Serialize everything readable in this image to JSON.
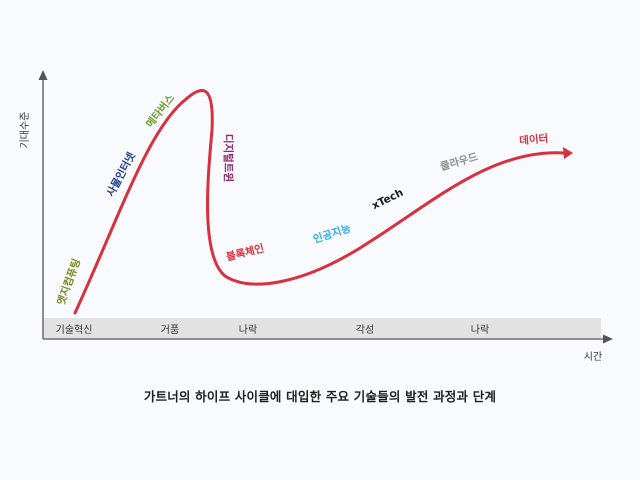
{
  "axes": {
    "y_label": "기대수준",
    "x_label": "시간"
  },
  "stages": [
    "기술혁신",
    "거품",
    "나락",
    "각성",
    "나락"
  ],
  "technologies": [
    {
      "label": "엣지컴퓨팅",
      "color": "#7a8a23"
    },
    {
      "label": "사물인터넷",
      "color": "#1d3c86"
    },
    {
      "label": "메타버스",
      "color": "#6f9a2e"
    },
    {
      "label": "디지털트윈",
      "color": "#8b2a6f"
    },
    {
      "label": "블록체인",
      "color": "#d8303f"
    },
    {
      "label": "인공지능",
      "color": "#2eaee0"
    },
    {
      "label": "xTech",
      "color": "#1a1a1a"
    },
    {
      "label": "클라우드",
      "color": "#8c8c8c"
    },
    {
      "label": "데이터",
      "color": "#d8303f"
    }
  ],
  "curve_color": "#d8303f",
  "stage_band_color": "#e2e2e2",
  "caption": "가트너의 하이프 사이클에 대입한 주요 기술들의 발전 과정과 단계"
}
